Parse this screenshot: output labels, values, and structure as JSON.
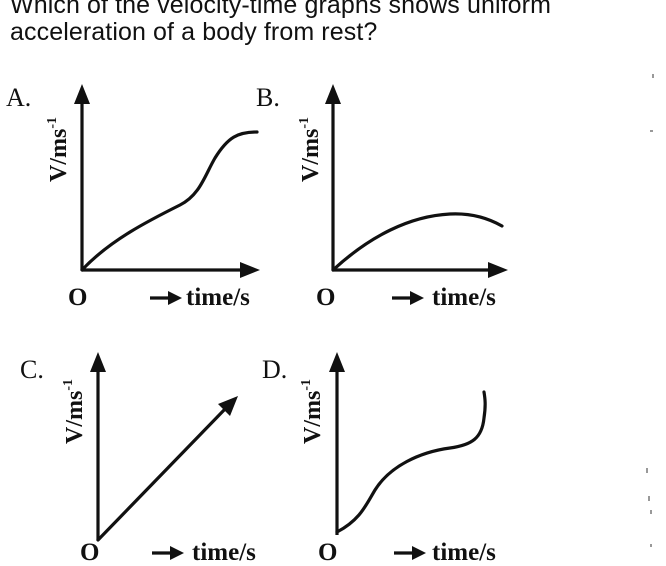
{
  "question": {
    "line1": "Which of the velocity-time graphs shows uniform",
    "line2": "acceleration of a body from rest?"
  },
  "y_axis_label": "V/ms",
  "y_axis_exp": "-1",
  "x_axis_label": "time/s",
  "origin_label": "O",
  "options": [
    {
      "label": "A.",
      "curve": "increasing-then-levelling"
    },
    {
      "label": "B.",
      "curve": "rising-then-falling"
    },
    {
      "label": "C.",
      "curve": "straight-line-through-origin"
    },
    {
      "label": "D.",
      "curve": "s-curve-rising"
    }
  ]
}
